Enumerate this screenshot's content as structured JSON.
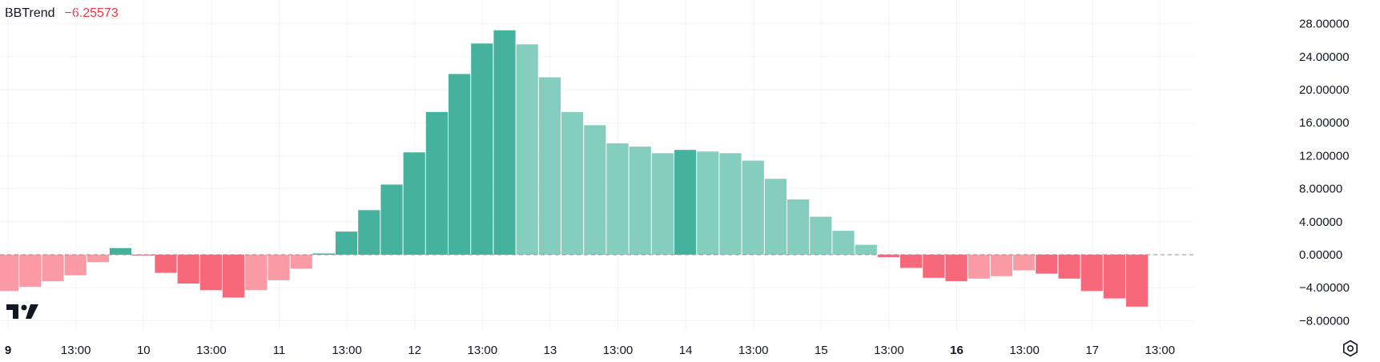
{
  "legend": {
    "name": "BBTrend",
    "value": "−6.25573"
  },
  "colors": {
    "strong_green": "#45b29d",
    "light_green": "#84cdbf",
    "strong_red": "#f7697a",
    "light_red": "#f99aa4",
    "grid": "#f0f3fa",
    "text": "#131722"
  },
  "icons": {
    "logo": "tradingview-logo",
    "settings": "gear-icon"
  },
  "chart_data": {
    "type": "bar",
    "title": "BBTrend",
    "ylim": [
      -9.5,
      29
    ],
    "y_ticks": [
      "28.00000",
      "24.00000",
      "20.00000",
      "16.00000",
      "12.00000",
      "8.00000",
      "4.00000",
      "0.00000",
      "−4.00000",
      "−8.00000"
    ],
    "y_tick_values": [
      28,
      24,
      20,
      16,
      12,
      8,
      4,
      0,
      -4,
      -8
    ],
    "x_ticks": [
      {
        "label": "9",
        "bold": true,
        "bar_index": 0
      },
      {
        "label": "13:00",
        "bold": false,
        "bar_index": 3
      },
      {
        "label": "10",
        "bold": false,
        "bar_index": 6
      },
      {
        "label": "13:00",
        "bold": false,
        "bar_index": 9
      },
      {
        "label": "11",
        "bold": false,
        "bar_index": 12
      },
      {
        "label": "13:00",
        "bold": false,
        "bar_index": 15
      },
      {
        "label": "12",
        "bold": false,
        "bar_index": 18
      },
      {
        "label": "13:00",
        "bold": false,
        "bar_index": 21
      },
      {
        "label": "13",
        "bold": false,
        "bar_index": 24
      },
      {
        "label": "13:00",
        "bold": false,
        "bar_index": 27
      },
      {
        "label": "14",
        "bold": false,
        "bar_index": 30
      },
      {
        "label": "13:00",
        "bold": false,
        "bar_index": 33
      },
      {
        "label": "15",
        "bold": false,
        "bar_index": 36
      },
      {
        "label": "13:00",
        "bold": false,
        "bar_index": 39
      },
      {
        "label": "16",
        "bold": true,
        "bar_index": 42
      },
      {
        "label": "13:00",
        "bold": false,
        "bar_index": 45
      },
      {
        "label": "17",
        "bold": false,
        "bar_index": 48
      },
      {
        "label": "13:00",
        "bold": false,
        "bar_index": 51
      }
    ],
    "values": [
      -4.4,
      -3.9,
      -3.2,
      -2.5,
      -0.9,
      0.8,
      -0.1,
      -2.2,
      -3.5,
      -4.3,
      -5.2,
      -4.3,
      -3.1,
      -1.7,
      0.15,
      2.8,
      5.4,
      8.5,
      12.4,
      17.3,
      21.9,
      25.6,
      27.2,
      25.5,
      21.5,
      17.3,
      15.7,
      13.5,
      13.1,
      12.3,
      12.7,
      12.5,
      12.3,
      11.4,
      9.2,
      6.7,
      4.6,
      2.9,
      1.2,
      -0.3,
      -1.6,
      -2.8,
      -3.2,
      -2.9,
      -2.6,
      -1.9,
      -2.3,
      -2.9,
      -4.4,
      -5.3,
      -6.3
    ],
    "colors": [
      "lr",
      "lr",
      "lr",
      "lr",
      "lr",
      "sg",
      "sr",
      "sr",
      "sr",
      "sr",
      "sr",
      "lr",
      "lr",
      "lr",
      "sg",
      "sg",
      "sg",
      "sg",
      "sg",
      "sg",
      "sg",
      "sg",
      "sg",
      "lg",
      "lg",
      "lg",
      "lg",
      "lg",
      "lg",
      "lg",
      "sg",
      "lg",
      "lg",
      "lg",
      "lg",
      "lg",
      "lg",
      "lg",
      "lg",
      "sr",
      "sr",
      "sr",
      "sr",
      "lr",
      "lr",
      "lr",
      "sr",
      "sr",
      "sr",
      "sr",
      "sr"
    ],
    "grid": true,
    "zero_line": "dashed"
  }
}
